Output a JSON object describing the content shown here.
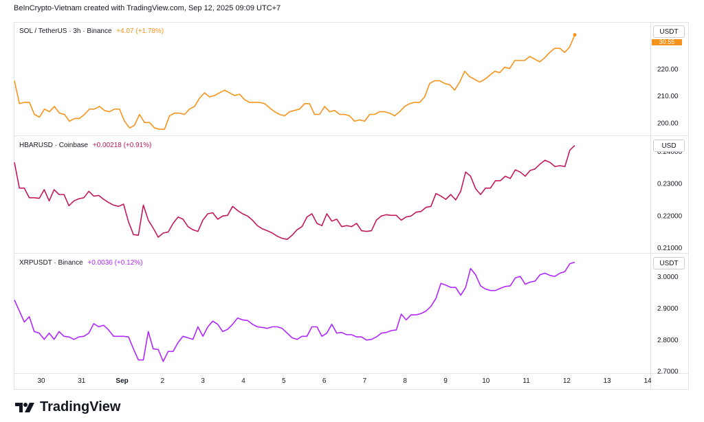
{
  "header": {
    "text": "BeInCrypto-Vietnam created with TradingView.com, Sep 12, 2025 09:09 UTC+7"
  },
  "brand": {
    "name": "TradingView",
    "logo_icon": "tradingview-logo-icon"
  },
  "colors": {
    "sol": "#f7931a",
    "hbar": "#c2185b",
    "xrp": "#b026ff",
    "grid": "#e0e3eb",
    "text": "#131722"
  },
  "x_axis": {
    "labels": [
      "30",
      "31",
      "Sep",
      "2",
      "3",
      "4",
      "5",
      "6",
      "7",
      "8",
      "9",
      "10",
      "11",
      "12",
      "13",
      "14"
    ]
  },
  "panes": [
    {
      "key": "sol",
      "label": "SOL / TetherUS · 3h · Binance",
      "change": "+4.07 (+1.78%)",
      "unit": "USDT",
      "last_price_tag": "30.55",
      "ticks": [
        "220.00",
        "210.00",
        "200.00"
      ]
    },
    {
      "key": "hbar",
      "label": "HBARUSD · Coinbase",
      "change": "+0.00218 (+0.91%)",
      "unit": "USD",
      "ticks": [
        "0.24000",
        "0.23000",
        "0.22000",
        "0.21000"
      ]
    },
    {
      "key": "xrp",
      "label": "XRPUSDT · Binance",
      "change": "+0.0036 (+0.12%)",
      "unit": "USDT",
      "ticks": [
        "3.0000",
        "2.9000",
        "2.8000",
        "2.7000"
      ]
    }
  ],
  "chart_data": [
    {
      "type": "line",
      "title": "SOL / TetherUS · 3h · Binance",
      "xlabel": "",
      "ylabel": "",
      "ylim": [
        195.5,
        237
      ],
      "x_range": [
        "Aug 29",
        "Sep 14"
      ],
      "series": [
        {
          "name": "SOL / TetherUS",
          "values": [
            215.5,
            207,
            207.5,
            207.5,
            203,
            202,
            205,
            204,
            206,
            203.5,
            203,
            200.5,
            201.5,
            201.5,
            203,
            205,
            205,
            206,
            204.5,
            204,
            205,
            205,
            200.5,
            198,
            199,
            203,
            200,
            200,
            198,
            197.5,
            197.5,
            202.5,
            203.5,
            203.5,
            203,
            205,
            206,
            209,
            211,
            209.5,
            210,
            211,
            212,
            211,
            210,
            210.5,
            208.5,
            207.5,
            207.5,
            207.5,
            207,
            205.5,
            204,
            203,
            202.5,
            204,
            204.5,
            205,
            207,
            207,
            203,
            203,
            206,
            204,
            204.5,
            203,
            203,
            202.5,
            200.5,
            201,
            200.5,
            203,
            203,
            204,
            204,
            203.5,
            202.5,
            204,
            206,
            207,
            207.5,
            207.5,
            209.5,
            214.5,
            215.5,
            215.5,
            214.5,
            214,
            212,
            215,
            219,
            217,
            216,
            215,
            216,
            217.5,
            219,
            218.5,
            220.5,
            220,
            223,
            223,
            223,
            224.5,
            223.5,
            222.5,
            224,
            226,
            227.5,
            227.5,
            226,
            228,
            232.5
          ]
        }
      ]
    },
    {
      "type": "line",
      "title": "HBARUSD · Coinbase",
      "xlabel": "",
      "ylabel": "",
      "ylim": [
        0.2085,
        0.2445
      ],
      "x_range": [
        "Aug 29",
        "Sep 14"
      ],
      "series": [
        {
          "name": "HBARUSD",
          "values": [
            0.2365,
            0.2285,
            0.2285,
            0.2255,
            0.2255,
            0.2253,
            0.228,
            0.2245,
            0.228,
            0.2265,
            0.2265,
            0.223,
            0.2245,
            0.2252,
            0.2255,
            0.2275,
            0.226,
            0.2262,
            0.225,
            0.224,
            0.2232,
            0.2228,
            0.2235,
            0.218,
            0.214,
            0.2138,
            0.2232,
            0.2185,
            0.216,
            0.2132,
            0.2145,
            0.2148,
            0.2175,
            0.2195,
            0.2188,
            0.2165,
            0.2155,
            0.215,
            0.2185,
            0.2205,
            0.2208,
            0.2188,
            0.2198,
            0.22,
            0.2228,
            0.2215,
            0.2205,
            0.2198,
            0.2185,
            0.2168,
            0.2158,
            0.2152,
            0.2145,
            0.2135,
            0.2128,
            0.2125,
            0.2138,
            0.2155,
            0.2165,
            0.2195,
            0.2205,
            0.2175,
            0.2168,
            0.2205,
            0.2182,
            0.2188,
            0.2165,
            0.2168,
            0.2165,
            0.2175,
            0.2152,
            0.215,
            0.2152,
            0.2185,
            0.2198,
            0.2202,
            0.22,
            0.22,
            0.2185,
            0.2195,
            0.2198,
            0.221,
            0.2212,
            0.2225,
            0.2228,
            0.2268,
            0.226,
            0.225,
            0.2265,
            0.2248,
            0.2275,
            0.2335,
            0.2322,
            0.2283,
            0.2265,
            0.2285,
            0.2285,
            0.2308,
            0.2308,
            0.2322,
            0.2315,
            0.2342,
            0.2335,
            0.2322,
            0.234,
            0.2345,
            0.236,
            0.2372,
            0.2365,
            0.2352,
            0.2355,
            0.2352,
            0.2403,
            0.2418
          ]
        }
      ]
    },
    {
      "type": "line",
      "title": "XRPUSDT · Binance",
      "xlabel": "",
      "ylabel": "",
      "ylim": [
        2.695,
        3.07
      ],
      "x_range": [
        "Aug 29",
        "Sep 14"
      ],
      "series": [
        {
          "name": "XRPUSDT",
          "values": [
            2.925,
            2.89,
            2.855,
            2.872,
            2.825,
            2.82,
            2.8,
            2.82,
            2.8,
            2.825,
            2.81,
            2.808,
            2.8,
            2.808,
            2.81,
            2.82,
            2.85,
            2.84,
            2.845,
            2.83,
            2.81,
            2.81,
            2.81,
            2.808,
            2.77,
            2.735,
            2.735,
            2.825,
            2.77,
            2.768,
            2.73,
            2.762,
            2.762,
            2.79,
            2.81,
            2.805,
            2.8,
            2.84,
            2.81,
            2.84,
            2.858,
            2.848,
            2.825,
            2.832,
            2.848,
            2.868,
            2.862,
            2.86,
            2.848,
            2.84,
            2.838,
            2.835,
            2.84,
            2.84,
            2.835,
            2.82,
            2.805,
            2.8,
            2.81,
            2.81,
            2.84,
            2.84,
            2.81,
            2.82,
            2.848,
            2.82,
            2.822,
            2.815,
            2.815,
            2.808,
            2.808,
            2.798,
            2.8,
            2.808,
            2.82,
            2.822,
            2.828,
            2.83,
            2.88,
            2.862,
            2.878,
            2.878,
            2.882,
            2.89,
            2.905,
            2.93,
            2.978,
            2.972,
            2.965,
            2.965,
            2.94,
            2.965,
            3.025,
            3.005,
            2.97,
            2.96,
            2.955,
            2.955,
            2.962,
            2.968,
            2.97,
            2.995,
            3.0,
            2.975,
            2.982,
            2.985,
            3.005,
            3.01,
            3.003,
            3.0,
            3.01,
            3.015,
            3.04,
            3.045
          ]
        }
      ]
    }
  ]
}
